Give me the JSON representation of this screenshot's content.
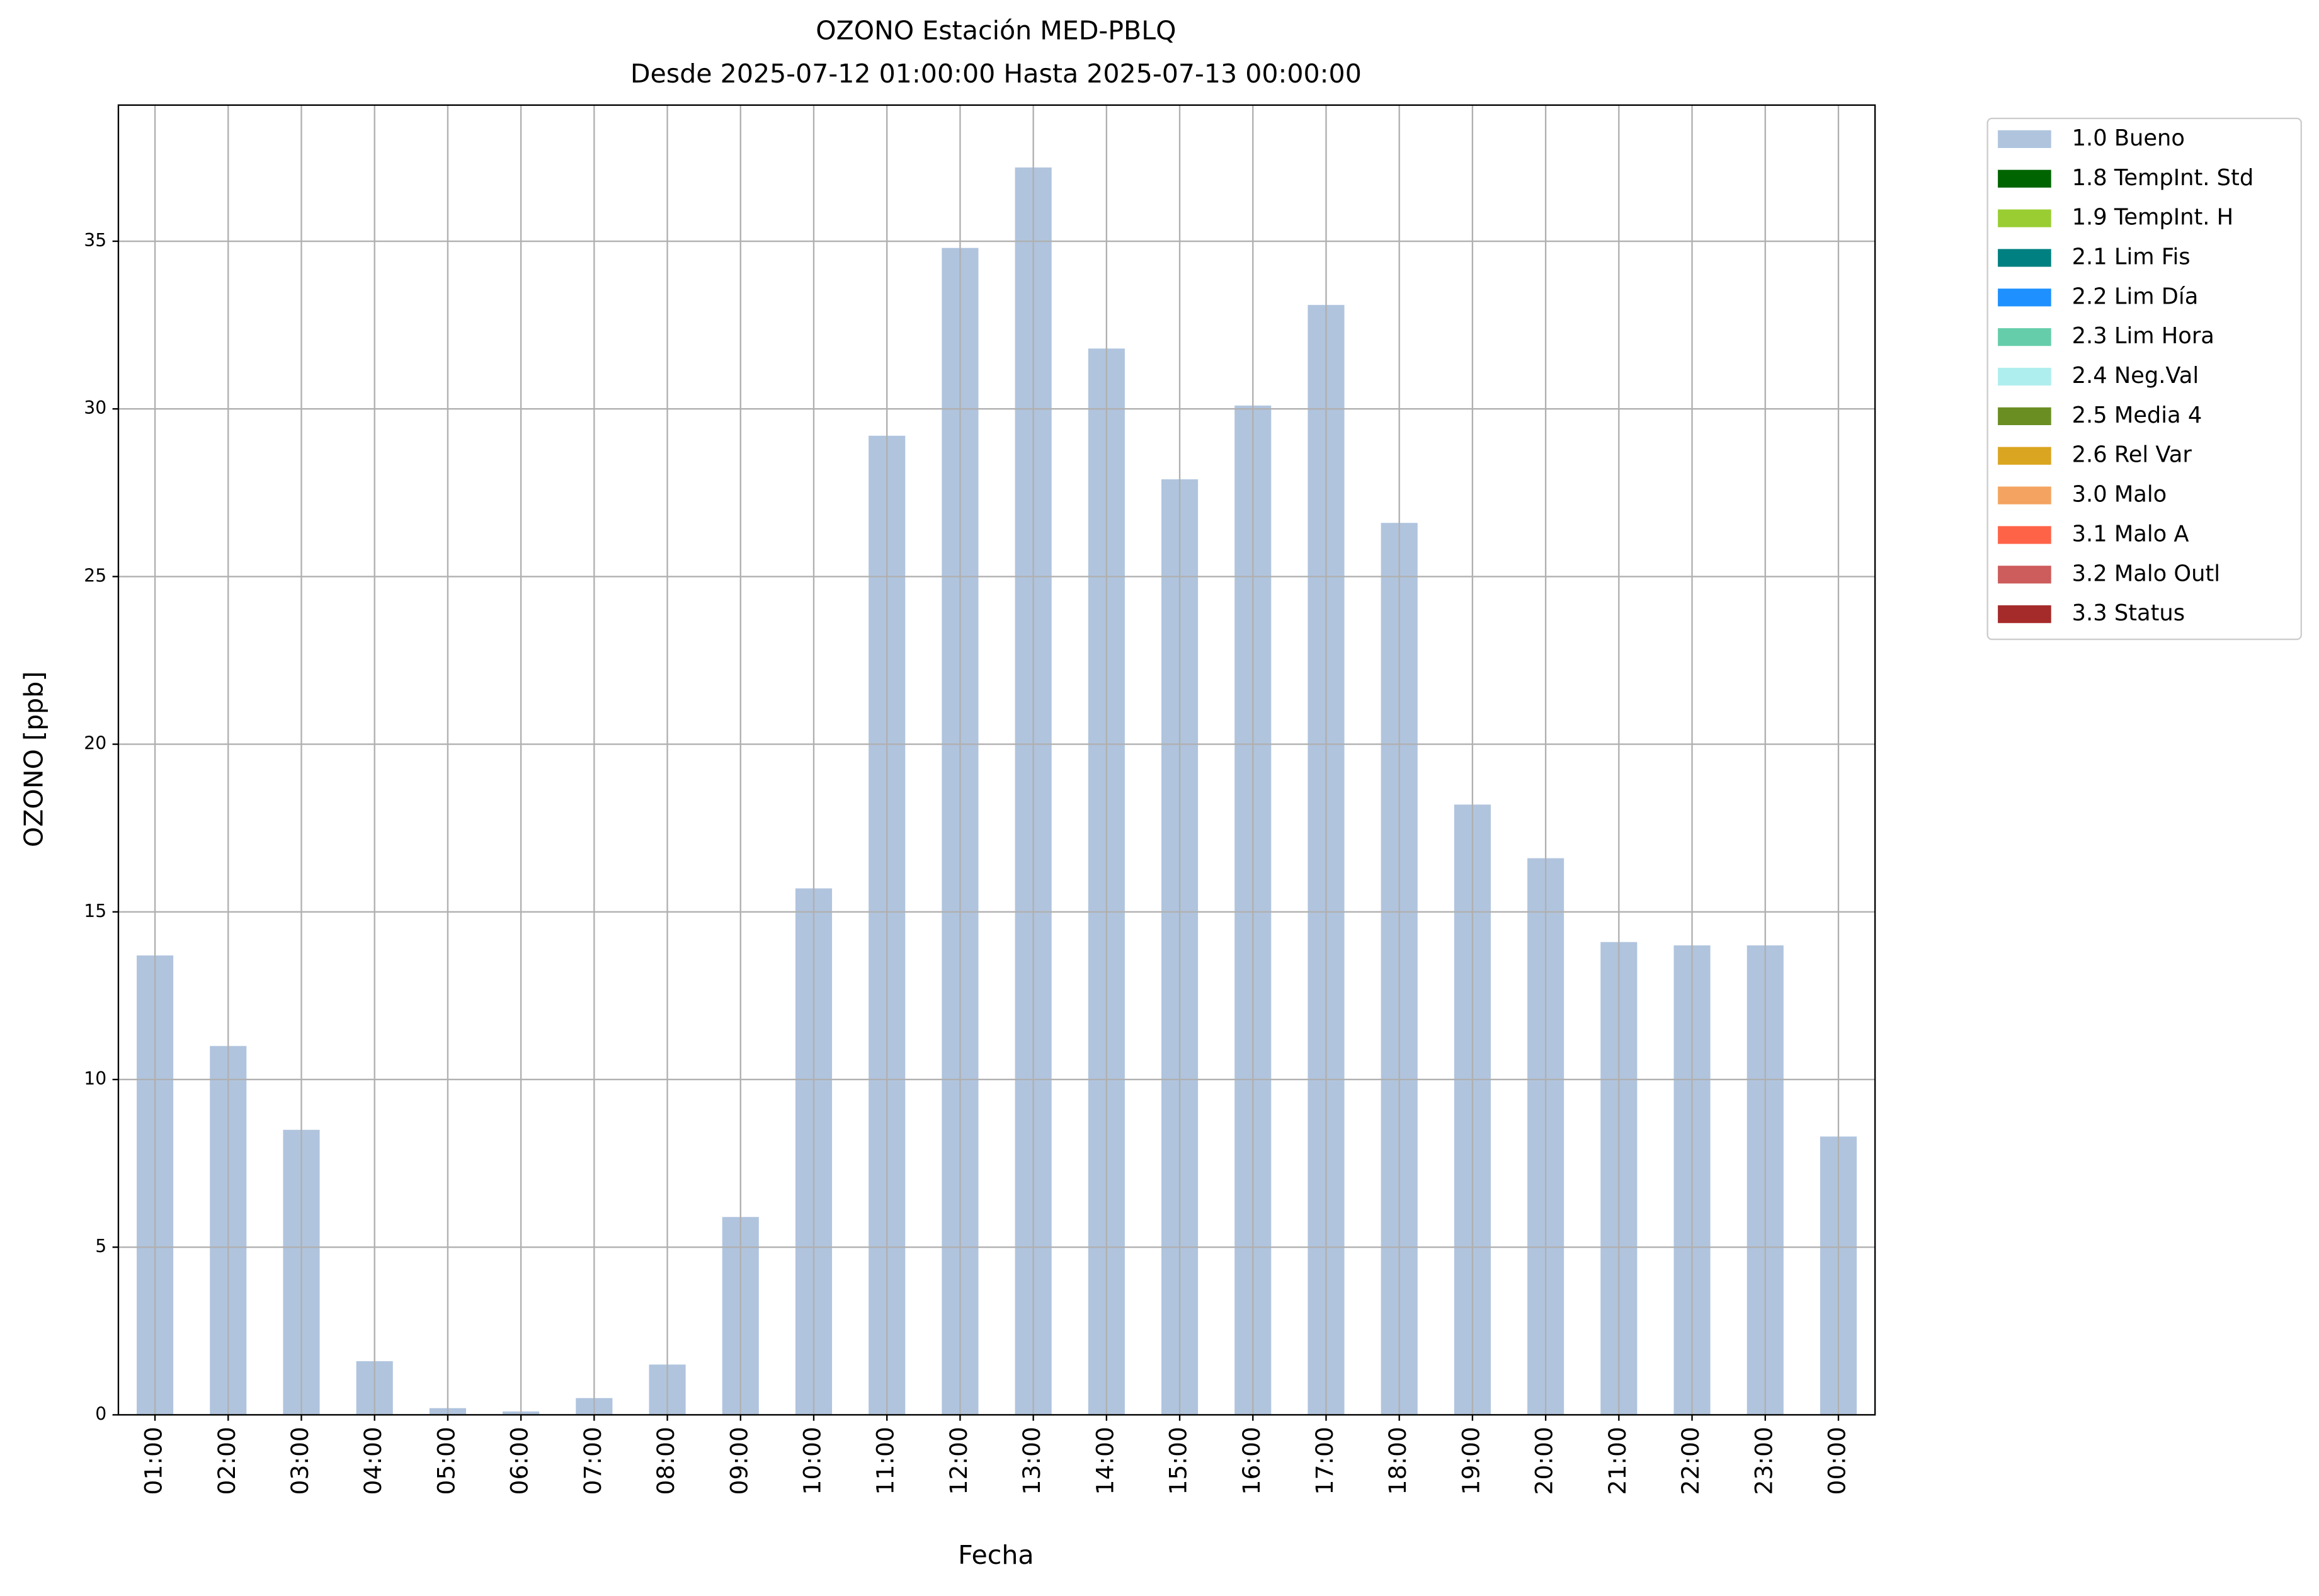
{
  "chart_data": {
    "type": "bar",
    "stacked": true,
    "title": "OZONO Estación MED-PBLQ",
    "subtitle": "Desde 2025-07-12 01:00:00 Hasta 2025-07-13 00:00:00",
    "x_label": "Fecha",
    "y_label": "OZONO [ppb]",
    "categories": [
      "01:00",
      "02:00",
      "03:00",
      "04:00",
      "05:00",
      "06:00",
      "07:00",
      "08:00",
      "09:00",
      "10:00",
      "11:00",
      "12:00",
      "13:00",
      "14:00",
      "15:00",
      "16:00",
      "17:00",
      "18:00",
      "19:00",
      "20:00",
      "21:00",
      "22:00",
      "23:00",
      "00:00"
    ],
    "series": [
      {
        "name": "1.0 Bueno",
        "color": "#b0c4de",
        "values": [
          13.7,
          11.0,
          8.5,
          1.6,
          0.2,
          0.1,
          0.5,
          1.5,
          5.9,
          15.7,
          29.2,
          34.8,
          37.2,
          31.8,
          27.9,
          30.1,
          33.1,
          26.6,
          18.2,
          16.6,
          14.1,
          14.0,
          14.0,
          8.3
        ]
      },
      {
        "name": "1.8 TempInt. Std",
        "color": "#006400",
        "values": [
          null,
          null,
          null,
          null,
          null,
          null,
          null,
          null,
          null,
          null,
          null,
          null,
          null,
          null,
          null,
          null,
          null,
          null,
          null,
          null,
          null,
          null,
          null,
          null
        ]
      },
      {
        "name": "1.9 TempInt. H",
        "color": "#9acd32",
        "values": [
          null,
          null,
          null,
          null,
          null,
          null,
          null,
          null,
          null,
          null,
          null,
          null,
          null,
          null,
          null,
          null,
          null,
          null,
          null,
          null,
          null,
          null,
          null,
          null
        ]
      },
      {
        "name": "2.1 Lim Fis",
        "color": "#008080",
        "values": [
          null,
          null,
          null,
          null,
          null,
          null,
          null,
          null,
          null,
          null,
          null,
          null,
          null,
          null,
          null,
          null,
          null,
          null,
          null,
          null,
          null,
          null,
          null,
          null
        ]
      },
      {
        "name": "2.2 Lim Día",
        "color": "#1e90ff",
        "values": [
          null,
          null,
          null,
          null,
          null,
          null,
          null,
          null,
          null,
          null,
          null,
          null,
          null,
          null,
          null,
          null,
          null,
          null,
          null,
          null,
          null,
          null,
          null,
          null
        ]
      },
      {
        "name": "2.3 Lim Hora",
        "color": "#66cdaa",
        "values": [
          null,
          null,
          null,
          null,
          null,
          null,
          null,
          null,
          null,
          null,
          null,
          null,
          null,
          null,
          null,
          null,
          null,
          null,
          null,
          null,
          null,
          null,
          null,
          null
        ]
      },
      {
        "name": "2.4 Neg.Val",
        "color": "#afeeee",
        "values": [
          null,
          null,
          null,
          null,
          null,
          null,
          null,
          null,
          null,
          null,
          null,
          null,
          null,
          null,
          null,
          null,
          null,
          null,
          null,
          null,
          null,
          null,
          null,
          null
        ]
      },
      {
        "name": "2.5 Media 4",
        "color": "#6b8e23",
        "values": [
          null,
          null,
          null,
          null,
          null,
          null,
          null,
          null,
          null,
          null,
          null,
          null,
          null,
          null,
          null,
          null,
          null,
          null,
          null,
          null,
          null,
          null,
          null,
          null
        ]
      },
      {
        "name": "2.6 Rel Var",
        "color": "#daa520",
        "values": [
          null,
          null,
          null,
          null,
          null,
          null,
          null,
          null,
          null,
          null,
          null,
          null,
          null,
          null,
          null,
          null,
          null,
          null,
          null,
          null,
          null,
          null,
          null,
          null
        ]
      },
      {
        "name": "3.0 Malo",
        "color": "#f4a460",
        "values": [
          null,
          null,
          null,
          null,
          null,
          null,
          null,
          null,
          null,
          null,
          null,
          null,
          null,
          null,
          null,
          null,
          null,
          null,
          null,
          null,
          null,
          null,
          null,
          null
        ]
      },
      {
        "name": "3.1 Malo A",
        "color": "#ff6347",
        "values": [
          null,
          null,
          null,
          null,
          null,
          null,
          null,
          null,
          null,
          null,
          null,
          null,
          null,
          null,
          null,
          null,
          null,
          null,
          null,
          null,
          null,
          null,
          null,
          null
        ]
      },
      {
        "name": "3.2 Malo Outl",
        "color": "#cd5c5c",
        "values": [
          null,
          null,
          null,
          null,
          null,
          null,
          null,
          null,
          null,
          null,
          null,
          null,
          null,
          null,
          null,
          null,
          null,
          null,
          null,
          null,
          null,
          null,
          null,
          null
        ]
      },
      {
        "name": "3.3 Status",
        "color": "#a52a2a",
        "values": [
          null,
          null,
          null,
          null,
          null,
          null,
          null,
          null,
          null,
          null,
          null,
          null,
          null,
          null,
          null,
          null,
          null,
          null,
          null,
          null,
          null,
          null,
          null,
          null
        ]
      }
    ],
    "ylim": [
      0,
      39.06
    ],
    "yticks": [
      0,
      5,
      10,
      15,
      20,
      25,
      30,
      35
    ],
    "grid": true,
    "legend": "outside upper right"
  }
}
